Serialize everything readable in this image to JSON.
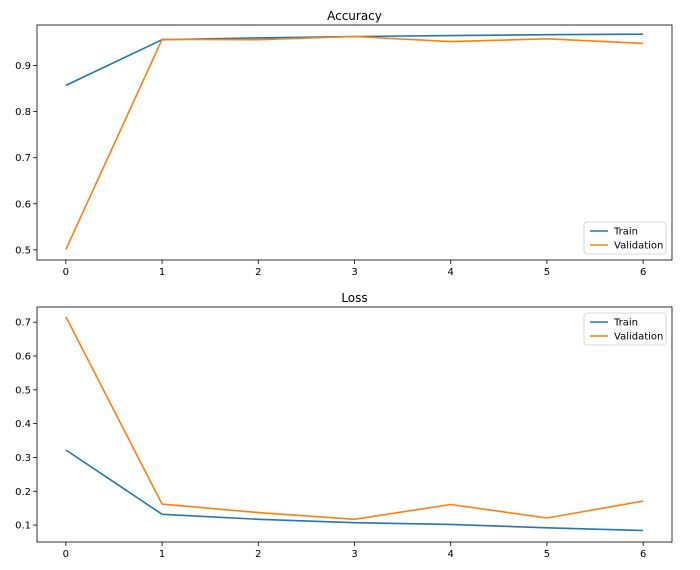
{
  "chart_data": [
    {
      "type": "line",
      "title": "Accuracy",
      "xlabel": "",
      "ylabel": "",
      "x": [
        0,
        1,
        2,
        3,
        4,
        5,
        6
      ],
      "xlim": [
        -0.3,
        6.3
      ],
      "ylim": [
        0.478,
        0.988
      ],
      "xticks": [
        0,
        1,
        2,
        3,
        4,
        5,
        6
      ],
      "yticks": [
        0.5,
        0.6,
        0.7,
        0.8,
        0.9
      ],
      "grid": false,
      "legend_position": "lower-right",
      "series": [
        {
          "name": "Train",
          "color": "#1f77b4",
          "values": [
            0.857,
            0.956,
            0.96,
            0.963,
            0.965,
            0.967,
            0.968
          ]
        },
        {
          "name": "Validation",
          "color": "#ff7f0e",
          "values": [
            0.501,
            0.957,
            0.956,
            0.963,
            0.952,
            0.958,
            0.948
          ]
        }
      ]
    },
    {
      "type": "line",
      "title": "Loss",
      "xlabel": "",
      "ylabel": "",
      "x": [
        0,
        1,
        2,
        3,
        4,
        5,
        6
      ],
      "xlim": [
        -0.3,
        6.3
      ],
      "ylim": [
        0.05,
        0.745
      ],
      "xticks": [
        0,
        1,
        2,
        3,
        4,
        5,
        6
      ],
      "yticks": [
        0.1,
        0.2,
        0.3,
        0.4,
        0.5,
        0.6,
        0.7
      ],
      "grid": false,
      "legend_position": "upper-right",
      "series": [
        {
          "name": "Train",
          "color": "#1f77b4",
          "values": [
            0.322,
            0.132,
            0.117,
            0.107,
            0.102,
            0.092,
            0.084
          ]
        },
        {
          "name": "Validation",
          "color": "#ff7f0e",
          "values": [
            0.716,
            0.162,
            0.137,
            0.117,
            0.161,
            0.121,
            0.171
          ]
        }
      ]
    }
  ]
}
